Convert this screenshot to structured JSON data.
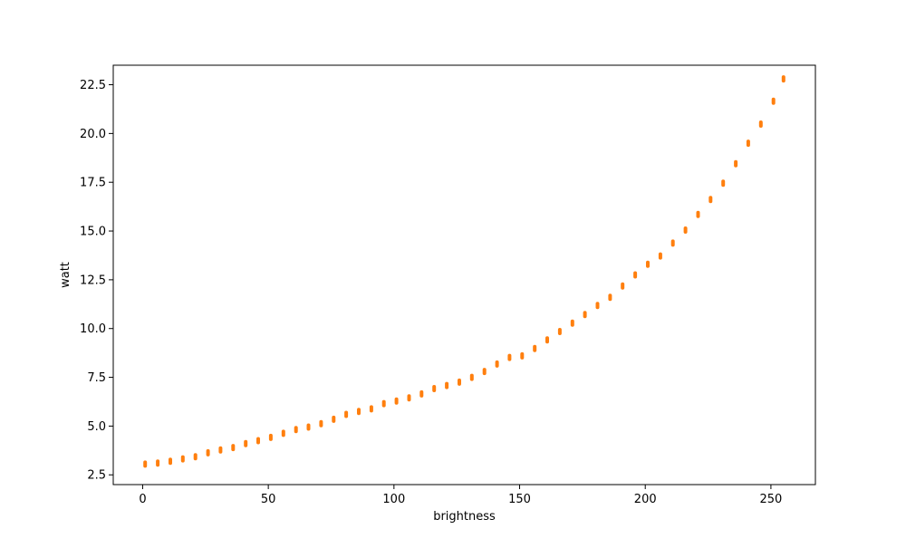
{
  "chart_data": {
    "type": "scatter",
    "title": "",
    "xlabel": "brightness",
    "ylabel": "watt",
    "xlim": [
      -11.7,
      267.7
    ],
    "ylim": [
      2.0,
      23.5
    ],
    "grid": false,
    "marker_color": "#ff7f0e",
    "xticks": [
      {
        "value": 0,
        "label": "0"
      },
      {
        "value": 50,
        "label": "50"
      },
      {
        "value": 100,
        "label": "100"
      },
      {
        "value": 150,
        "label": "150"
      },
      {
        "value": 200,
        "label": "200"
      },
      {
        "value": 250,
        "label": "250"
      }
    ],
    "yticks": [
      {
        "value": 2.5,
        "label": "2.5"
      },
      {
        "value": 5.0,
        "label": "5.0"
      },
      {
        "value": 7.5,
        "label": "7.5"
      },
      {
        "value": 10.0,
        "label": "10.0"
      },
      {
        "value": 12.5,
        "label": "12.5"
      },
      {
        "value": 15.0,
        "label": "15.0"
      },
      {
        "value": 17.5,
        "label": "17.5"
      },
      {
        "value": 20.0,
        "label": "20.0"
      },
      {
        "value": 22.5,
        "label": "22.5"
      }
    ],
    "series": [
      {
        "points": [
          [
            1,
            3.05
          ],
          [
            6,
            3.1
          ],
          [
            11,
            3.2
          ],
          [
            16,
            3.32
          ],
          [
            21,
            3.43
          ],
          [
            26,
            3.63
          ],
          [
            31,
            3.78
          ],
          [
            36,
            3.9
          ],
          [
            41,
            4.1
          ],
          [
            46,
            4.25
          ],
          [
            51,
            4.42
          ],
          [
            56,
            4.63
          ],
          [
            61,
            4.82
          ],
          [
            66,
            4.95
          ],
          [
            71,
            5.12
          ],
          [
            76,
            5.35
          ],
          [
            81,
            5.6
          ],
          [
            86,
            5.75
          ],
          [
            91,
            5.88
          ],
          [
            96,
            6.15
          ],
          [
            101,
            6.28
          ],
          [
            106,
            6.45
          ],
          [
            111,
            6.65
          ],
          [
            116,
            6.92
          ],
          [
            121,
            7.08
          ],
          [
            126,
            7.25
          ],
          [
            131,
            7.5
          ],
          [
            136,
            7.8
          ],
          [
            141,
            8.18
          ],
          [
            146,
            8.52
          ],
          [
            151,
            8.6
          ],
          [
            156,
            8.98
          ],
          [
            161,
            9.42
          ],
          [
            166,
            9.85
          ],
          [
            171,
            10.28
          ],
          [
            176,
            10.72
          ],
          [
            181,
            11.18
          ],
          [
            186,
            11.6
          ],
          [
            191,
            12.18
          ],
          [
            196,
            12.75
          ],
          [
            201,
            13.3
          ],
          [
            206,
            13.72
          ],
          [
            211,
            14.38
          ],
          [
            216,
            15.05
          ],
          [
            221,
            15.85
          ],
          [
            226,
            16.62
          ],
          [
            231,
            17.45
          ],
          [
            236,
            18.45
          ],
          [
            241,
            19.5
          ],
          [
            246,
            20.48
          ],
          [
            251,
            21.65
          ],
          [
            255,
            22.8
          ]
        ]
      }
    ]
  }
}
